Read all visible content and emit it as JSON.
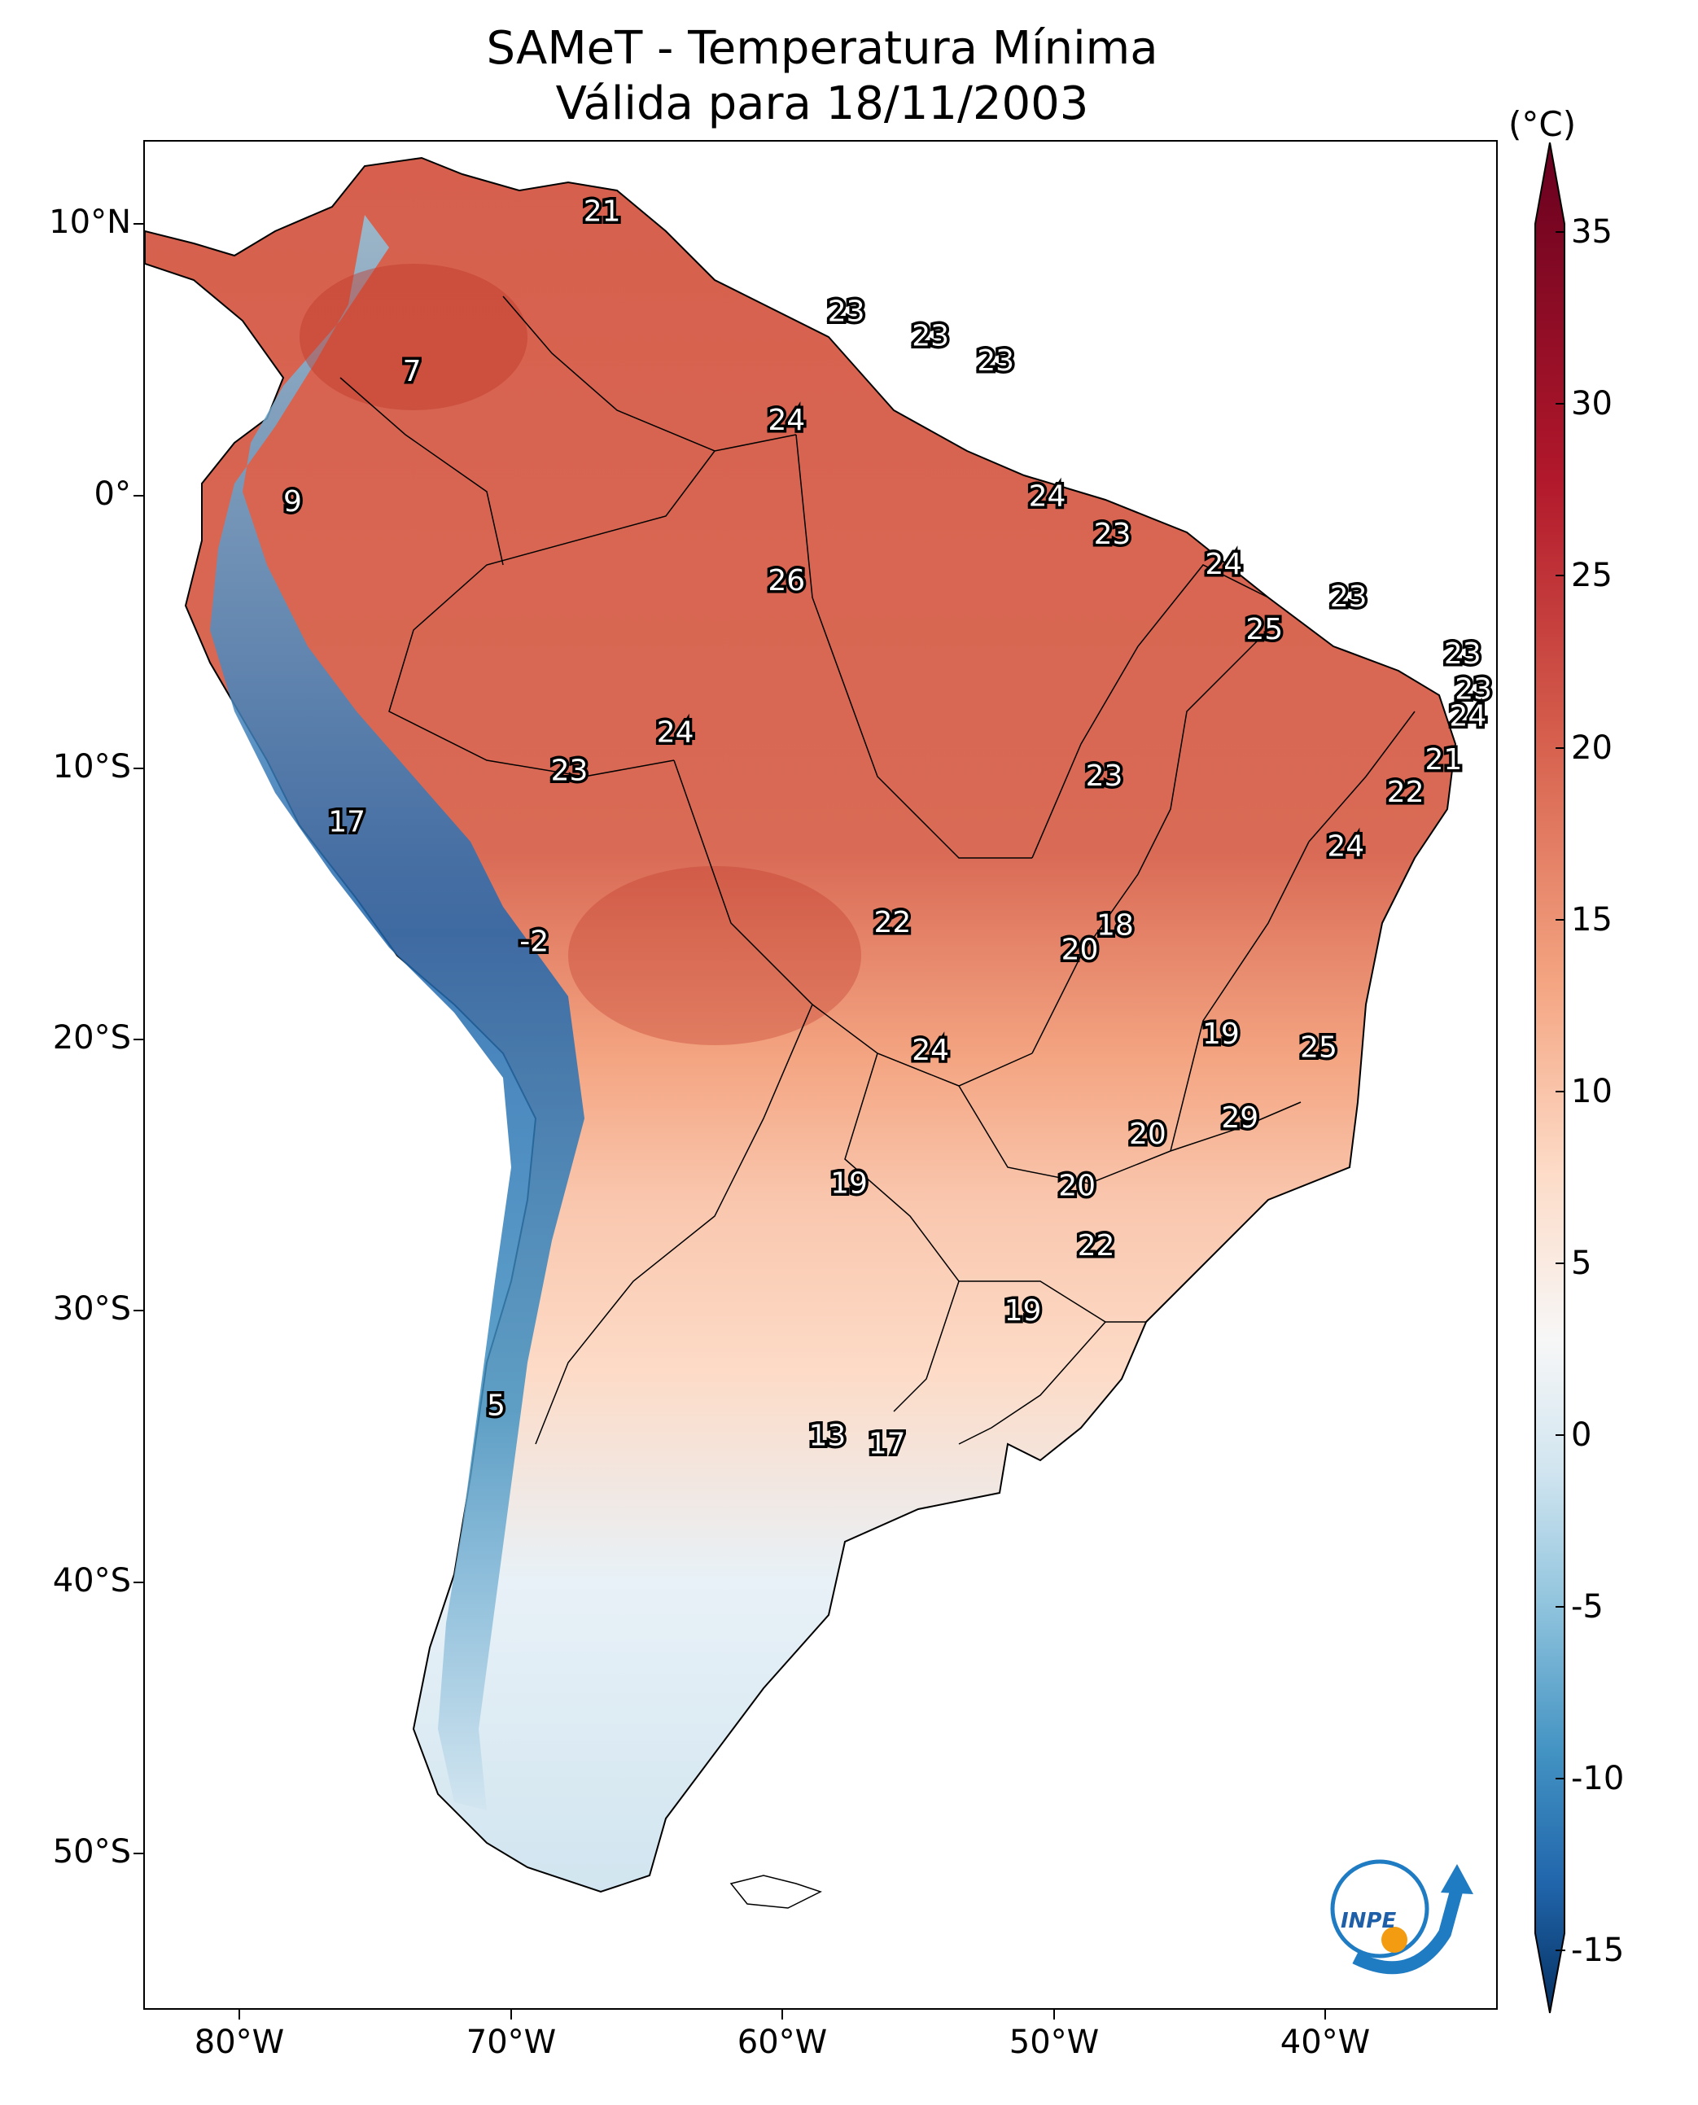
{
  "title": {
    "line1": "SAMeT - Temperatura Mínima",
    "line2": "Válida para 18/11/2003"
  },
  "axes": {
    "lat_ticks": [
      "10°N",
      "0°",
      "10°S",
      "20°S",
      "30°S",
      "40°S",
      "50°S"
    ],
    "lon_ticks": [
      "80°W",
      "70°W",
      "60°W",
      "50°W",
      "40°W"
    ]
  },
  "colorbar": {
    "unit": "(°C)",
    "ticks": [
      "35",
      "30",
      "25",
      "20",
      "15",
      "10",
      "5",
      "0",
      "-5",
      "-10",
      "-15"
    ],
    "colors": {
      "max": "#67001f",
      "hot": "#b2182b",
      "warm": "#d6604d",
      "mild": "#f4a582",
      "cool": "#fddbc7",
      "neutral": "#f7f7f7",
      "cold": "#d1e5f0",
      "colder": "#92c5de",
      "very_cold": "#4393c3",
      "freezing": "#2166ac",
      "min": "#053061"
    }
  },
  "labels": [
    {
      "text": "21",
      "lon": -66.7,
      "lat": 10.5
    },
    {
      "text": "7",
      "lon": -73.7,
      "lat": 4.6
    },
    {
      "text": "9",
      "lon": -78.1,
      "lat": -0.2
    },
    {
      "text": "23",
      "lon": -57.7,
      "lat": 6.8
    },
    {
      "text": "23",
      "lon": -54.6,
      "lat": 5.9
    },
    {
      "text": "23",
      "lon": -52.2,
      "lat": 5.0
    },
    {
      "text": "24",
      "lon": -59.9,
      "lat": 2.8
    },
    {
      "text": "24",
      "lon": -50.3,
      "lat": 0.0
    },
    {
      "text": "23",
      "lon": -47.9,
      "lat": -1.4
    },
    {
      "text": "26",
      "lon": -59.9,
      "lat": -3.1
    },
    {
      "text": "24",
      "lon": -43.8,
      "lat": -2.5
    },
    {
      "text": "23",
      "lon": -39.2,
      "lat": -3.7
    },
    {
      "text": "25",
      "lon": -42.3,
      "lat": -4.9
    },
    {
      "text": "23",
      "lon": -35.0,
      "lat": -5.8
    },
    {
      "text": "23",
      "lon": -34.6,
      "lat": -7.1
    },
    {
      "text": "24",
      "lon": -34.8,
      "lat": -8.1
    },
    {
      "text": "21",
      "lon": -35.7,
      "lat": -9.7
    },
    {
      "text": "22",
      "lon": -37.1,
      "lat": -10.9
    },
    {
      "text": "24",
      "lon": -64.0,
      "lat": -8.7
    },
    {
      "text": "23",
      "lon": -67.9,
      "lat": -10.1
    },
    {
      "text": "23",
      "lon": -48.2,
      "lat": -10.3
    },
    {
      "text": "24",
      "lon": -39.3,
      "lat": -12.9
    },
    {
      "text": "17",
      "lon": -76.1,
      "lat": -12.0
    },
    {
      "text": "-2",
      "lon": -69.2,
      "lat": -16.4
    },
    {
      "text": "22",
      "lon": -56.0,
      "lat": -15.7
    },
    {
      "text": "18",
      "lon": -47.8,
      "lat": -15.8
    },
    {
      "text": "20",
      "lon": -49.1,
      "lat": -16.7
    },
    {
      "text": "19",
      "lon": -43.9,
      "lat": -19.8
    },
    {
      "text": "25",
      "lon": -40.3,
      "lat": -20.3
    },
    {
      "text": "24",
      "lon": -54.6,
      "lat": -20.4
    },
    {
      "text": "29",
      "lon": -43.2,
      "lat": -22.9
    },
    {
      "text": "20",
      "lon": -46.6,
      "lat": -23.5
    },
    {
      "text": "19",
      "lon": -57.6,
      "lat": -25.3
    },
    {
      "text": "20",
      "lon": -49.2,
      "lat": -25.4
    },
    {
      "text": "22",
      "lon": -48.5,
      "lat": -27.6
    },
    {
      "text": "19",
      "lon": -51.2,
      "lat": -30.0
    },
    {
      "text": "5",
      "lon": -70.6,
      "lat": -33.5
    },
    {
      "text": "13",
      "lon": -58.4,
      "lat": -34.6
    },
    {
      "text": "17",
      "lon": -56.2,
      "lat": -34.9
    }
  ],
  "logo": {
    "text": "INPE"
  }
}
